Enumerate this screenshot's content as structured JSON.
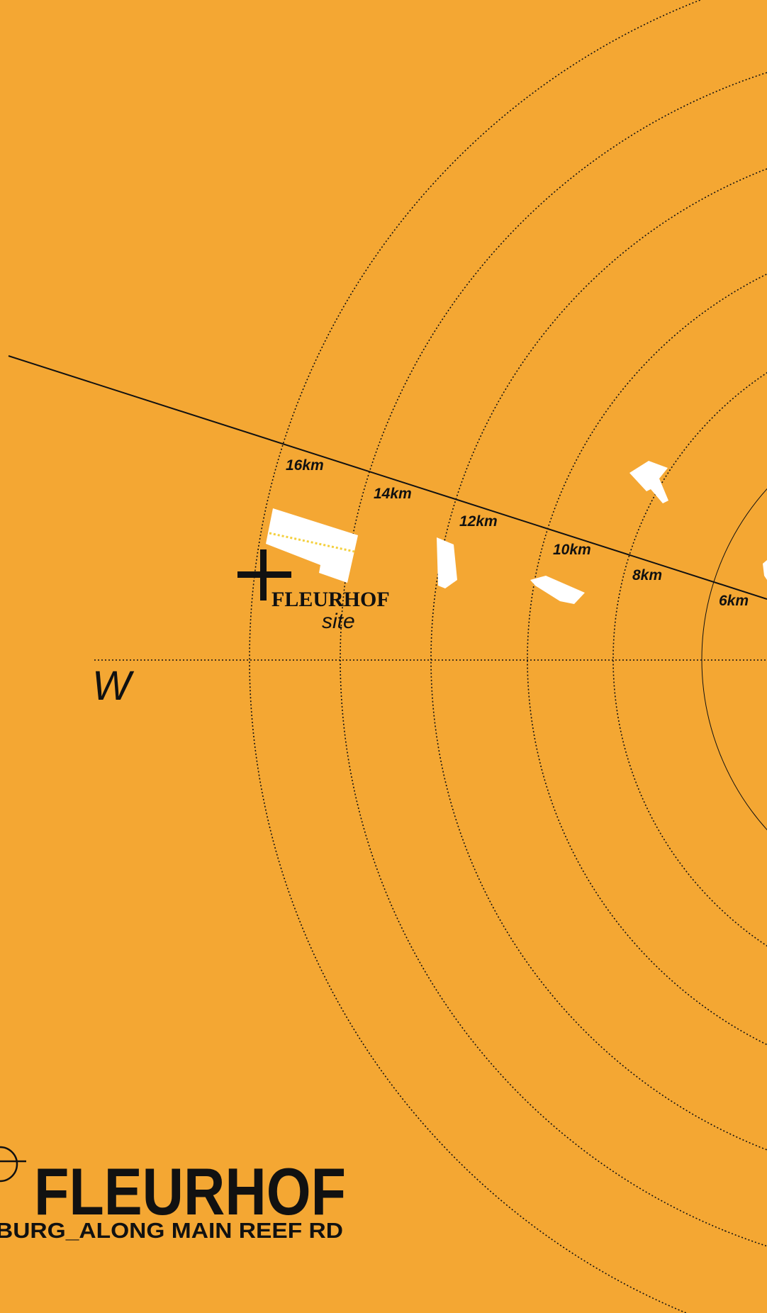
{
  "colors": {
    "background": "#F4A733",
    "ink": "#111111",
    "site_blocks": "#FFFFFF",
    "site_dots": "#F4D03F"
  },
  "icons": {
    "site_marker": "plus-cross-icon",
    "title_marker": "crosshair-circle-icon"
  },
  "rings": [
    {
      "label": "16km"
    },
    {
      "label": "14km"
    },
    {
      "label": "12km"
    },
    {
      "label": "10km"
    },
    {
      "label": "8km"
    },
    {
      "label": "6km"
    }
  ],
  "site": {
    "name": "FLEURHOF",
    "subtitle": "site"
  },
  "compass": {
    "west": "W"
  },
  "title": {
    "main": "FLEURHOF",
    "subtitle": "BURG_ALONG MAIN REEF RD"
  }
}
